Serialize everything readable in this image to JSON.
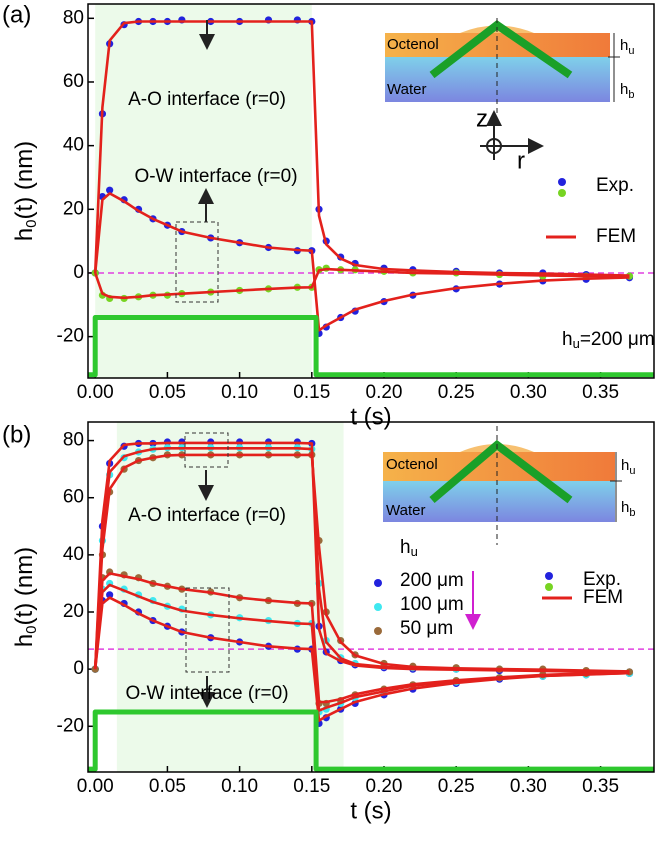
{
  "chart_data": [
    {
      "type": "scatter",
      "panel_label": "(a)",
      "x_label": "t (s)",
      "y_label": [
        "h",
        "0",
        "(t) (nm)"
      ],
      "xlim": [
        -0.005,
        0.387
      ],
      "ylim": [
        -33,
        84.5
      ],
      "xticks": [
        {
          "value": 0,
          "label": "0.00"
        },
        0.05,
        {
          "value": 0.1,
          "label": "0.10"
        },
        0.15,
        {
          "value": 0.2,
          "label": "0.20"
        },
        0.25,
        {
          "value": 0.3,
          "label": "0.30"
        },
        0.35
      ],
      "yticks": [
        -20,
        0,
        20,
        40,
        60,
        80
      ],
      "shade": [
        0,
        0.15
      ],
      "shade_color": "#ecfaea",
      "reference_line": 0,
      "reference_color": "#e040e0",
      "x": [
        0,
        0.005,
        0.01,
        0.02,
        0.03,
        0.04,
        0.05,
        0.06,
        0.08,
        0.1,
        0.12,
        0.14,
        0.15,
        0.155,
        0.16,
        0.17,
        0.18,
        0.2,
        0.22,
        0.25,
        0.28,
        0.31,
        0.34,
        0.37
      ],
      "series": [
        {
          "mode": "markers",
          "color": "#2222dd",
          "values": [
            0,
            50,
            72,
            78,
            79,
            79,
            79,
            79.5,
            79,
            79,
            79.5,
            79.5,
            79,
            20,
            10,
            5,
            3,
            1.5,
            1,
            0.5,
            0,
            0,
            -0.5,
            -1
          ]
        },
        {
          "mode": "markers",
          "color": "#2222dd",
          "values": [
            0,
            24,
            26,
            23,
            20,
            17,
            15,
            13,
            11,
            9.5,
            8,
            7,
            7,
            -19,
            -17,
            -14,
            -12,
            -9,
            -7,
            -5,
            -3.5,
            -2.5,
            -2,
            -1.5
          ]
        },
        {
          "mode": "markers",
          "color": "#77d422",
          "values": [
            0,
            -7,
            -8,
            -8,
            -7.5,
            -7,
            -7,
            -6.5,
            -6,
            -5.5,
            -5,
            -4.5,
            -4.5,
            1,
            1.5,
            1,
            1,
            0.5,
            0,
            0,
            -0.5,
            -1,
            -1,
            -1
          ]
        },
        {
          "mode": "line",
          "color": "#e3211c",
          "values": [
            0,
            52,
            73,
            78.5,
            79,
            79,
            79,
            79,
            79,
            79,
            79,
            79,
            79,
            18,
            9,
            4.5,
            2.5,
            1.2,
            0.8,
            0.3,
            0,
            -0.2,
            -0.5,
            -0.8
          ]
        },
        {
          "mode": "line",
          "color": "#e3211c",
          "values": [
            0,
            23,
            25,
            22.5,
            19.5,
            17,
            15,
            13,
            11,
            9.5,
            8,
            7.2,
            7,
            -18,
            -16.5,
            -14,
            -11.5,
            -8.8,
            -6.8,
            -4.8,
            -3.4,
            -2.4,
            -1.8,
            -1.4
          ]
        },
        {
          "mode": "line",
          "color": "#e3211c",
          "values": [
            0,
            -6.5,
            -7.5,
            -7.8,
            -7.5,
            -7,
            -6.8,
            -6.5,
            -6,
            -5.5,
            -5,
            -4.6,
            -4.5,
            0.8,
            1.2,
            1,
            0.8,
            0.4,
            0,
            -0.2,
            -0.5,
            -0.8,
            -1,
            -1
          ]
        },
        {
          "mode": "step",
          "color": "#2ec82e",
          "x": [
            -0.005,
            0,
            0,
            0.153,
            0.153,
            0.387
          ],
          "values": [
            -32,
            -32,
            -14,
            -14,
            -32,
            -32
          ]
        }
      ],
      "legend": [
        {
          "label": "Exp.",
          "colors": [
            "#2222dd",
            "#77d422"
          ]
        },
        {
          "label": "FEM",
          "color": "#e3211c"
        }
      ],
      "annotations": [
        "A-O interface (r=0)",
        "O-W interface (r=0)"
      ],
      "note": [
        "h",
        "u",
        "=200 μm"
      ],
      "inset": {
        "upper": "Octenol",
        "lower": "Water",
        "h_upper": [
          "h",
          "u"
        ],
        "h_lower": [
          "h",
          "b"
        ],
        "axis_z": "z",
        "axis_r": "r"
      }
    },
    {
      "type": "scatter",
      "panel_label": "(b)",
      "x_label": "t (s)",
      "y_label": [
        "h",
        "0",
        "(t) (nm)"
      ],
      "xlim": [
        -0.005,
        0.387
      ],
      "ylim": [
        -36,
        86.5
      ],
      "xticks": [
        {
          "value": 0,
          "label": "0.00"
        },
        0.05,
        {
          "value": 0.1,
          "label": "0.10"
        },
        0.15,
        {
          "value": 0.2,
          "label": "0.20"
        },
        0.25,
        {
          "value": 0.3,
          "label": "0.30"
        },
        0.35
      ],
      "yticks": [
        -20,
        0,
        20,
        40,
        60,
        80
      ],
      "shade": [
        0.015,
        0.172
      ],
      "shade_color": "#ecfaea",
      "reference_line": 7,
      "reference_color": "#e040e0",
      "x": [
        0,
        0.005,
        0.01,
        0.02,
        0.03,
        0.04,
        0.05,
        0.06,
        0.08,
        0.1,
        0.12,
        0.14,
        0.15,
        0.155,
        0.16,
        0.17,
        0.18,
        0.2,
        0.22,
        0.25,
        0.28,
        0.31,
        0.34,
        0.37
      ],
      "series": [
        {
          "mode": "markers",
          "name": "200 μm",
          "color": "#2222dd",
          "values": [
            0,
            50,
            72,
            78,
            79,
            79,
            79.5,
            79.5,
            79.5,
            79.5,
            79.5,
            79.5,
            79,
            15,
            6,
            3,
            1.5,
            0.5,
            0,
            0,
            -0.5,
            -0.5,
            -1,
            -1
          ]
        },
        {
          "mode": "markers",
          "name": "100 μm",
          "color": "#3fe8f0",
          "values": [
            0,
            45,
            68,
            74,
            76,
            77,
            77.5,
            77.5,
            77.5,
            77.5,
            77.5,
            77.5,
            77,
            30,
            10,
            4,
            2,
            1,
            0.5,
            0,
            0,
            -0.5,
            -1,
            -1
          ]
        },
        {
          "mode": "markers",
          "name": "50 μm",
          "color": "#9a6a3a",
          "values": [
            0,
            40,
            62,
            70,
            73,
            74,
            75,
            75,
            75,
            75,
            75,
            75,
            75,
            45,
            20,
            10,
            5,
            2,
            1,
            0.5,
            0,
            0,
            -0.5,
            -1
          ]
        },
        {
          "mode": "markers",
          "color": "#2222dd",
          "values": [
            0,
            24,
            26,
            23,
            20,
            17,
            15,
            13,
            11,
            9.5,
            8,
            7,
            7,
            -19,
            -17,
            -14,
            -12,
            -9,
            -7,
            -5,
            -3.5,
            -2.5,
            -2,
            -1.5
          ]
        },
        {
          "mode": "markers",
          "color": "#3fe8f0",
          "values": [
            0,
            28,
            30,
            28,
            26,
            24,
            22,
            21,
            19,
            18,
            17,
            16,
            16,
            -15,
            -14,
            -12,
            -10,
            -8,
            -6,
            -4.5,
            -3,
            -2.5,
            -2,
            -1.5
          ]
        },
        {
          "mode": "markers",
          "color": "#9a6a3a",
          "values": [
            0,
            32,
            34,
            33,
            32,
            30,
            29,
            28,
            27,
            25,
            24,
            23,
            23,
            -12,
            -12,
            -11,
            -9,
            -7,
            -5.5,
            -4,
            -3,
            -2,
            -1.5,
            -1
          ]
        },
        {
          "mode": "line",
          "color": "#e3211c",
          "values": [
            0,
            52,
            73,
            78.5,
            79,
            79,
            79.2,
            79.2,
            79.2,
            79.2,
            79.2,
            79.2,
            79,
            14,
            5.5,
            2.8,
            1.3,
            0.4,
            0,
            -0.2,
            -0.4,
            -0.6,
            -0.9,
            -1
          ]
        },
        {
          "mode": "line",
          "color": "#e3211c",
          "values": [
            0,
            47,
            69,
            74.5,
            76,
            77,
            77.3,
            77.3,
            77.3,
            77.3,
            77.3,
            77.3,
            77,
            28,
            9.5,
            3.8,
            1.8,
            0.8,
            0.3,
            0,
            -0.2,
            -0.5,
            -0.8,
            -1
          ]
        },
        {
          "mode": "line",
          "color": "#e3211c",
          "values": [
            0,
            42,
            63,
            70.5,
            73,
            74,
            74.8,
            75,
            75,
            75,
            75,
            75,
            75,
            43,
            19,
            9.5,
            4.8,
            1.8,
            0.8,
            0.3,
            0,
            -0.2,
            -0.5,
            -0.8
          ]
        },
        {
          "mode": "line",
          "color": "#e3211c",
          "values": [
            0,
            23,
            25,
            22.5,
            19.5,
            17,
            15,
            13,
            11,
            9.5,
            8,
            7.2,
            7,
            -18,
            -16.5,
            -14,
            -11.5,
            -8.8,
            -6.8,
            -4.8,
            -3.4,
            -2.4,
            -1.8,
            -1.4
          ]
        },
        {
          "mode": "line",
          "color": "#e3211c",
          "values": [
            0,
            27,
            29.5,
            27.5,
            25.5,
            23.5,
            22,
            20.5,
            19,
            17.8,
            16.8,
            16,
            15.8,
            -14.5,
            -13.5,
            -11.8,
            -9.8,
            -7.8,
            -5.8,
            -4.3,
            -3,
            -2.4,
            -1.9,
            -1.4
          ]
        },
        {
          "mode": "line",
          "color": "#e3211c",
          "values": [
            0,
            31,
            33.5,
            32.5,
            31.5,
            30,
            29,
            28,
            26.8,
            25,
            24,
            23.2,
            23,
            -11.5,
            -11.5,
            -10.5,
            -8.8,
            -6.8,
            -5.3,
            -3.9,
            -2.9,
            -2,
            -1.5,
            -1
          ]
        },
        {
          "mode": "step",
          "color": "#2ec82e",
          "x": [
            -0.005,
            0,
            0,
            0.153,
            0.153,
            0.387
          ],
          "values": [
            -35,
            -35,
            -15,
            -15,
            -35,
            -35
          ]
        }
      ],
      "legend": [
        {
          "label": "Exp.",
          "colors": [
            "#2222dd",
            "#77d422"
          ]
        },
        {
          "label": "FEM",
          "color": "#e3211c"
        }
      ],
      "legend_title": [
        "h",
        "u"
      ],
      "legend_arrow_color": "#d020d0",
      "annotations": [
        "A-O interface (r=0)",
        "O-W interface (r=0)"
      ],
      "inset": {
        "upper": "Octenol",
        "lower": "Water",
        "h_upper": [
          "h",
          "u"
        ],
        "h_lower": [
          "h",
          "b"
        ]
      }
    }
  ]
}
